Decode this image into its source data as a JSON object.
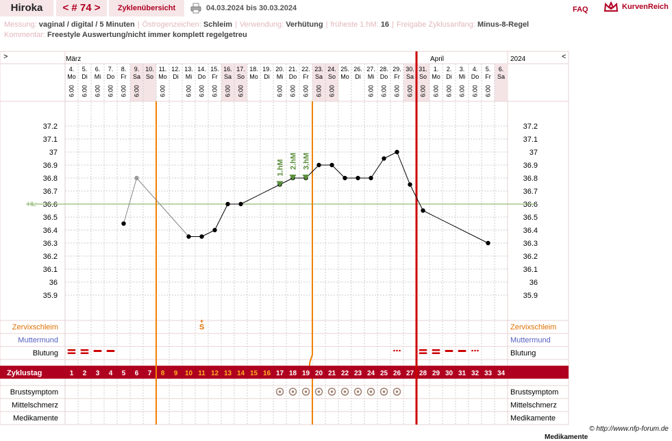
{
  "header": {
    "user": "Hiroka",
    "cycle_nav": "< # 74 >",
    "overview_tab": "Zyklenübersicht",
    "date_range": "04.03.2024 bis 30.03.2024",
    "faq": "FAQ",
    "brand": "KurvenReich",
    "printer_icon": "printer-icon",
    "brand_icon": "crown-logo-icon"
  },
  "info_rows": {
    "row1": [
      {
        "label": "Messung:",
        "value": "vaginal / digital / 5 Minuten"
      },
      {
        "label": "Östrogenzeichen:",
        "value": "Schleim"
      },
      {
        "label": "Verwendung:",
        "value": "Verhütung"
      },
      {
        "label": "früheste 1.hM:",
        "value": "16"
      },
      {
        "label": "Freigabe Zyklusanfang:",
        "value": "Minus-8-Regel"
      }
    ],
    "row2": [
      {
        "label": "Kommentar:",
        "value": "Freestyle Auswertung/nicht immer komplett regelgetreu"
      }
    ]
  },
  "chart_data": {
    "type": "line",
    "left_arrow": ">",
    "right_arrow": "<",
    "month_left": "März",
    "month_mid": "April",
    "year": "2024",
    "days": [
      {
        "d": "4.",
        "w": "Mo",
        "t": "6:00",
        "we": false
      },
      {
        "d": "5.",
        "w": "Di",
        "t": "6:00",
        "we": false
      },
      {
        "d": "6.",
        "w": "Mi",
        "t": "6:00",
        "we": false
      },
      {
        "d": "7.",
        "w": "Do",
        "t": "6:00",
        "we": false
      },
      {
        "d": "8.",
        "w": "Fr",
        "t": "6:00",
        "we": false
      },
      {
        "d": "9.",
        "w": "Sa",
        "t": "6:00",
        "we": true
      },
      {
        "d": "10.",
        "w": "So",
        "t": "",
        "we": true
      },
      {
        "d": "11.",
        "w": "Mo",
        "t": "6:00",
        "we": false
      },
      {
        "d": "12.",
        "w": "Di",
        "t": "",
        "we": false
      },
      {
        "d": "13.",
        "w": "Mi",
        "t": "6:00",
        "we": false
      },
      {
        "d": "14.",
        "w": "Do",
        "t": "6:00",
        "we": false
      },
      {
        "d": "15.",
        "w": "Fr",
        "t": "6:00",
        "we": false
      },
      {
        "d": "16.",
        "w": "Sa",
        "t": "6:00",
        "we": true
      },
      {
        "d": "17.",
        "w": "So",
        "t": "6:00",
        "we": true
      },
      {
        "d": "18.",
        "w": "Mo",
        "t": "",
        "we": false
      },
      {
        "d": "19.",
        "w": "Di",
        "t": "",
        "we": false
      },
      {
        "d": "20.",
        "w": "Mi",
        "t": "6:00",
        "we": false
      },
      {
        "d": "21.",
        "w": "Do",
        "t": "6:00",
        "we": false
      },
      {
        "d": "22.",
        "w": "Fr",
        "t": "6:00",
        "we": false
      },
      {
        "d": "23.",
        "w": "Sa",
        "t": "6:00",
        "we": true
      },
      {
        "d": "24.",
        "w": "So",
        "t": "6:00",
        "we": true
      },
      {
        "d": "25.",
        "w": "Mo",
        "t": "",
        "we": false
      },
      {
        "d": "26.",
        "w": "Di",
        "t": "",
        "we": false
      },
      {
        "d": "27.",
        "w": "Mi",
        "t": "6:00",
        "we": false
      },
      {
        "d": "28.",
        "w": "Do",
        "t": "6:00",
        "we": false
      },
      {
        "d": "29.",
        "w": "Fr",
        "t": "6:00",
        "we": false
      },
      {
        "d": "30.",
        "w": "Sa",
        "t": "6:00",
        "we": true
      },
      {
        "d": "31.",
        "w": "So",
        "t": "6:00",
        "we": true
      },
      {
        "d": "1.",
        "w": "Mo",
        "t": "6:00",
        "we": false
      },
      {
        "d": "2.",
        "w": "Di",
        "t": "6:00",
        "we": false
      },
      {
        "d": "3.",
        "w": "Mi",
        "t": "6:00",
        "we": false
      },
      {
        "d": "4.",
        "w": "Do",
        "t": "6:00",
        "we": false
      },
      {
        "d": "5.",
        "w": "Fr",
        "t": "6:00",
        "we": false
      },
      {
        "d": "6.",
        "w": "Sa",
        "t": "",
        "we": true
      }
    ],
    "cycle_days": [
      1,
      2,
      3,
      4,
      5,
      6,
      7,
      8,
      9,
      10,
      11,
      12,
      13,
      14,
      15,
      16,
      17,
      18,
      19,
      20,
      21,
      22,
      23,
      24,
      25,
      26,
      27,
      28,
      29,
      30,
      31,
      32,
      33,
      34
    ],
    "cycle_day_label": "Zyklustag",
    "y_ticks": [
      "37.2",
      "37.1",
      "37",
      "36.9",
      "36.8",
      "36.7",
      "36.6",
      "36.5",
      "36.4",
      "36.3",
      "36.2",
      "36.1",
      "36",
      "35.9"
    ],
    "ylim": [
      35.9,
      37.2
    ],
    "hl_label": "HL:",
    "hl_value": 36.6,
    "temperatures": [
      {
        "day": 5,
        "v": 36.45,
        "excluded": false
      },
      {
        "day": 6,
        "v": 36.8,
        "excluded": true
      },
      {
        "day": 10,
        "v": 36.35,
        "excluded": false
      },
      {
        "day": 11,
        "v": 36.35,
        "excluded": false
      },
      {
        "day": 12,
        "v": 36.4,
        "excluded": false
      },
      {
        "day": 13,
        "v": 36.6,
        "excluded": false
      },
      {
        "day": 14,
        "v": 36.6,
        "excluded": false
      },
      {
        "day": 17,
        "v": 36.75,
        "excluded": false
      },
      {
        "day": 18,
        "v": 36.8,
        "excluded": false
      },
      {
        "day": 19,
        "v": 36.8,
        "excluded": false
      },
      {
        "day": 20,
        "v": 36.9,
        "excluded": false
      },
      {
        "day": 21,
        "v": 36.9,
        "excluded": false
      },
      {
        "day": 22,
        "v": 36.8,
        "excluded": false
      },
      {
        "day": 23,
        "v": 36.8,
        "excluded": false
      },
      {
        "day": 24,
        "v": 36.8,
        "excluded": false
      },
      {
        "day": 25,
        "v": 36.95,
        "excluded": false
      },
      {
        "day": 26,
        "v": 37.0,
        "excluded": false
      },
      {
        "day": 27,
        "v": 36.75,
        "excluded": false
      },
      {
        "day": 28,
        "v": 36.55,
        "excluded": false
      },
      {
        "day": 33,
        "v": 36.3,
        "excluded": false
      }
    ],
    "hm_labels": [
      {
        "day": 17,
        "label": "1.hM"
      },
      {
        "day": 18,
        "label": "2.hM"
      },
      {
        "day": 19,
        "label": "3.hM"
      }
    ],
    "orange_lines_after_day": [
      7,
      19
    ],
    "cycle_start_line_before_day": 28,
    "rows": {
      "cervix": "Zervixschleim",
      "muttermund": "Muttermund",
      "bleeding": "Blutung",
      "breast": "Brustsymptom",
      "midpain": "Mittelschmerz",
      "meds": "Medikamente"
    },
    "cervix_marks": [
      {
        "day": 11,
        "symbol": "S+"
      }
    ],
    "bleeding_marks": [
      {
        "day": 1,
        "type": "heavy"
      },
      {
        "day": 2,
        "type": "heavy"
      },
      {
        "day": 3,
        "type": "medium"
      },
      {
        "day": 4,
        "type": "medium"
      },
      {
        "day": 26,
        "type": "spotting"
      },
      {
        "day": 28,
        "type": "heavy"
      },
      {
        "day": 29,
        "type": "heavy"
      },
      {
        "day": 30,
        "type": "medium"
      },
      {
        "day": 31,
        "type": "medium"
      },
      {
        "day": 32,
        "type": "spotting"
      }
    ],
    "breast_symptom_days": [
      17,
      18,
      19,
      20,
      21,
      22,
      23,
      24,
      25,
      26
    ]
  },
  "footer": {
    "copyright": "© http://www.nfp-forum.de",
    "bottom_cut": "Medikamente"
  },
  "colors": {
    "accent": "#b00020",
    "orange": "#f08000",
    "weekend": "#f4e4e6",
    "hl_line": "#77aa55",
    "hm_green": "#5a8f3c",
    "zervix": "#e07000",
    "muttermund": "#5560c0"
  }
}
